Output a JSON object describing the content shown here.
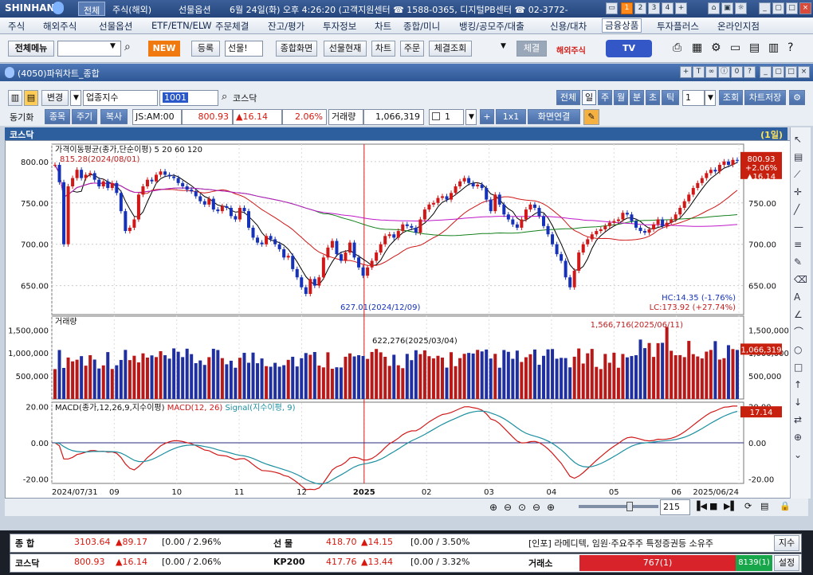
{
  "titlebar": {
    "brand": "SHINHAN",
    "tabs": [
      "전체",
      "주식(해외)",
      "선물옵션"
    ],
    "info": "6월 24일(화) 오후 4:26:20 (고객지원센터 ☎ 1588-0365, 디지털PB센터 ☎ 02-3772-",
    "page_buttons": [
      "1",
      "2",
      "3",
      "4",
      "+"
    ]
  },
  "menu": [
    "주식",
    "해외주식",
    "선물옵션",
    "ETF/ETN/ELW",
    "주문체결",
    "잔고/평가",
    "투자정보",
    "차트",
    "종합/미니",
    "뱅킹/공모주/대출",
    "신용/대차",
    "금융상품",
    "투자플러스",
    "온라인지점"
  ],
  "toolbar": {
    "all_menu": "전체메뉴",
    "new_badge": "NEW",
    "register": "등록",
    "selected": "선물!",
    "combined_screen": "종합화면",
    "futures_now": "선물현재",
    "chart": "차트",
    "order": "주문",
    "fill_inquiry": "체결조회",
    "fill": "체결",
    "overseas_stock": "해외주식",
    "tv": "TV"
  },
  "window": {
    "title": "(4050)파워차트_종합"
  },
  "controls": {
    "change": "변경",
    "sector_index": "업종지수",
    "code": "1001",
    "market_name": "코스닥",
    "periods": [
      "전체",
      "일",
      "주",
      "월",
      "분",
      "초",
      "틱"
    ],
    "period_count": "1",
    "query": "조회",
    "save_chart": "차트저장",
    "sync": "동기화",
    "sub_tabs": [
      "종목",
      "주기",
      "복사"
    ],
    "time": "JS:AM:00",
    "price": "800.93",
    "change_value": "▲16.14",
    "change_pct": "2.06%",
    "volume_label": "거래량",
    "volume": "1,066,319",
    "layout_count": "1",
    "layout": "1x1",
    "screen_link": "화면연결"
  },
  "chart_header": {
    "name": "코스닥",
    "period": "(1일)"
  },
  "chart_data": [
    {
      "type": "candlestick",
      "title": "가격이동평균(종가,단순이평) 5 20 60 120",
      "ma_legend": [
        "5",
        "20",
        "60",
        "120"
      ],
      "ma_colors": [
        "#000000",
        "#d01818",
        "#13801a",
        "#c018c8"
      ],
      "ylim": [
        627,
        816
      ],
      "y_ticks": [
        "800.00",
        "750.00",
        "700.00",
        "650.00"
      ],
      "x_ticks": [
        "2024/07/31",
        "09",
        "10",
        "11",
        "12",
        "2025",
        "02",
        "03",
        "04",
        "05",
        "06",
        "2025/06/24"
      ],
      "annotations": [
        "815.28(2024/08/01)",
        "627.01(2024/12/09)",
        "HC:14.35 (-1.76%)",
        "LC:173.92 (+27.74%)"
      ],
      "last_value": {
        "price": "800.93",
        "pct": "+2.06%",
        "change": "▲16.14"
      },
      "close_series": [
        796,
        775,
        700,
        770,
        780,
        790,
        780,
        784,
        786,
        778,
        770,
        776,
        768,
        774,
        762,
        740,
        716,
        720,
        730,
        760,
        770,
        778,
        776,
        784,
        788,
        784,
        782,
        780,
        774,
        770,
        766,
        764,
        758,
        752,
        748,
        755,
        742,
        740,
        746,
        744,
        734,
        730,
        744,
        740,
        720,
        708,
        702,
        700,
        710,
        706,
        700,
        694,
        684,
        686,
        670,
        660,
        648,
        640,
        658,
        650,
        660,
        684,
        696,
        704,
        688,
        680,
        690,
        702,
        684,
        672,
        662,
        672,
        680,
        690,
        700,
        710,
        712,
        708,
        716,
        724,
        722,
        720,
        714,
        730,
        742,
        748,
        750,
        756,
        758,
        754,
        762,
        770,
        776,
        780,
        774,
        770,
        772,
        768,
        754,
        740,
        760,
        748,
        736,
        730,
        724,
        720,
        730,
        742,
        748,
        744,
        734,
        722,
        712,
        700,
        688,
        680,
        660,
        648,
        668,
        690,
        700,
        706,
        712,
        716,
        718,
        722,
        726,
        728,
        730,
        738,
        736,
        728,
        720,
        716,
        714,
        718,
        724,
        730,
        722,
        726,
        730,
        736,
        744,
        752,
        760,
        768,
        774,
        780,
        786,
        790,
        788,
        796,
        800,
        796,
        802,
        801
      ]
    },
    {
      "type": "bar",
      "title": "거래량",
      "y_ticks": [
        "1,500,000",
        "1,000,000",
        "500,000"
      ],
      "annotations": [
        "622,276(2025/03/04)",
        "1,566,716(2025/06/11)"
      ],
      "last_value": "1,066,319"
    },
    {
      "type": "line",
      "title": "MACD(종가,12,26,9,지수이평)",
      "series_labels": [
        "MACD(12, 26)",
        "Signal(지수이평, 9)"
      ],
      "y_ticks": [
        "20.00",
        "0.00",
        "-20.00"
      ],
      "last_value": "17.14"
    }
  ],
  "scroll": {
    "count": "215"
  },
  "bottom": {
    "row1": {
      "label": "종 합",
      "value": "3103.64",
      "change": "▲89.17",
      "range": "[0.00 / 2.96%",
      "label2": "선 물",
      "value2": "418.70",
      "change2": "▲14.15",
      "range2": "[0.00 / 3.50%",
      "news": "[인포] 라메디텍, 임원·주요주주 특정증권등 소유주",
      "btn": "지수"
    },
    "row2": {
      "label": "코스닥",
      "value": "800.93",
      "change": "▲16.14",
      "range": "[0.00 / 2.06%",
      "label2": "KP200",
      "value2": "417.76",
      "change2": "▲13.44",
      "range2": "[0.00 / 3.32%",
      "exchange": "거래소",
      "up": "767(1)",
      "down": "8139(1)",
      "btn": "설정"
    }
  }
}
